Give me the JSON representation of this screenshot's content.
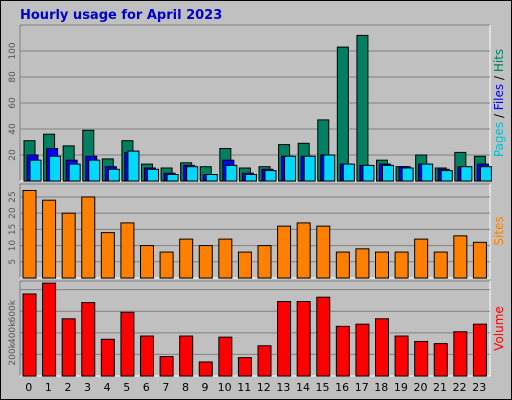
{
  "chart_data": {
    "title": "Hourly usage for April 2023",
    "categories": [
      "0",
      "1",
      "2",
      "3",
      "4",
      "5",
      "6",
      "7",
      "8",
      "9",
      "10",
      "11",
      "12",
      "13",
      "14",
      "15",
      "16",
      "17",
      "18",
      "19",
      "20",
      "21",
      "22",
      "23"
    ],
    "panels": [
      {
        "id": "hits",
        "type": "bar",
        "ylim": [
          0,
          120
        ],
        "yticks": [
          20,
          40,
          60,
          80,
          100
        ],
        "label_parts": [
          {
            "text": "Pages",
            "color": "#00c0d0"
          },
          {
            "text": " / ",
            "color": "#000000"
          },
          {
            "text": "Files",
            "color": "#0000ff"
          },
          {
            "text": " / ",
            "color": "#000000"
          },
          {
            "text": "Hits",
            "color": "#008060"
          }
        ],
        "series": [
          {
            "name": "Hits",
            "color": "#008060",
            "values": [
              31,
              36,
              27,
              39,
              17,
              31,
              13,
              10,
              14,
              11,
              25,
              10,
              11,
              28,
              29,
              47,
              103,
              112,
              16,
              11,
              20,
              10,
              22,
              19
            ]
          },
          {
            "name": "Files",
            "color": "#0000ff",
            "values": [
              20,
              25,
              16,
              19,
              11,
              22,
              10,
              6,
              12,
              5,
              16,
              6,
              9,
              19,
              19,
              20,
              13,
              12,
              13,
              11,
              13,
              9,
              11,
              13
            ]
          },
          {
            "name": "Pages",
            "color": "#00d8ff",
            "values": [
              16,
              19,
              13,
              16,
              9,
              23,
              9,
              5,
              11,
              5,
              12,
              5,
              8,
              19,
              19,
              20,
              13,
              12,
              12,
              10,
              13,
              8,
              11,
              11
            ]
          }
        ]
      },
      {
        "id": "sites",
        "type": "bar",
        "ylim": [
          0,
          29
        ],
        "yticks": [
          5,
          10,
          15,
          20,
          25
        ],
        "label_parts": [
          {
            "text": "Sites",
            "color": "#ff8000"
          }
        ],
        "series": [
          {
            "name": "Sites",
            "color": "#ff8000",
            "values": [
              27,
              24,
              20,
              25,
              14,
              17,
              10,
              8,
              12,
              10,
              12,
              8,
              10,
              16,
              17,
              16,
              8,
              9,
              8,
              8,
              12,
              8,
              13,
              11
            ]
          }
        ]
      },
      {
        "id": "volume",
        "type": "bar",
        "ylim": [
          0,
          880000
        ],
        "yticks": [
          200000,
          400000,
          600000,
          800000
        ],
        "ytick_labels": [
          "200k",
          "400k",
          "600k",
          ""
        ],
        "label_parts": [
          {
            "text": "Volume",
            "color": "#ff0000"
          }
        ],
        "series": [
          {
            "name": "Volume",
            "color": "#ff0000",
            "values": [
              760000,
              860000,
              530000,
              680000,
              340000,
              590000,
              370000,
              180000,
              370000,
              130000,
              360000,
              170000,
              280000,
              690000,
              690000,
              730000,
              460000,
              480000,
              530000,
              370000,
              320000,
              300000,
              410000,
              480000
            ]
          }
        ]
      }
    ]
  }
}
